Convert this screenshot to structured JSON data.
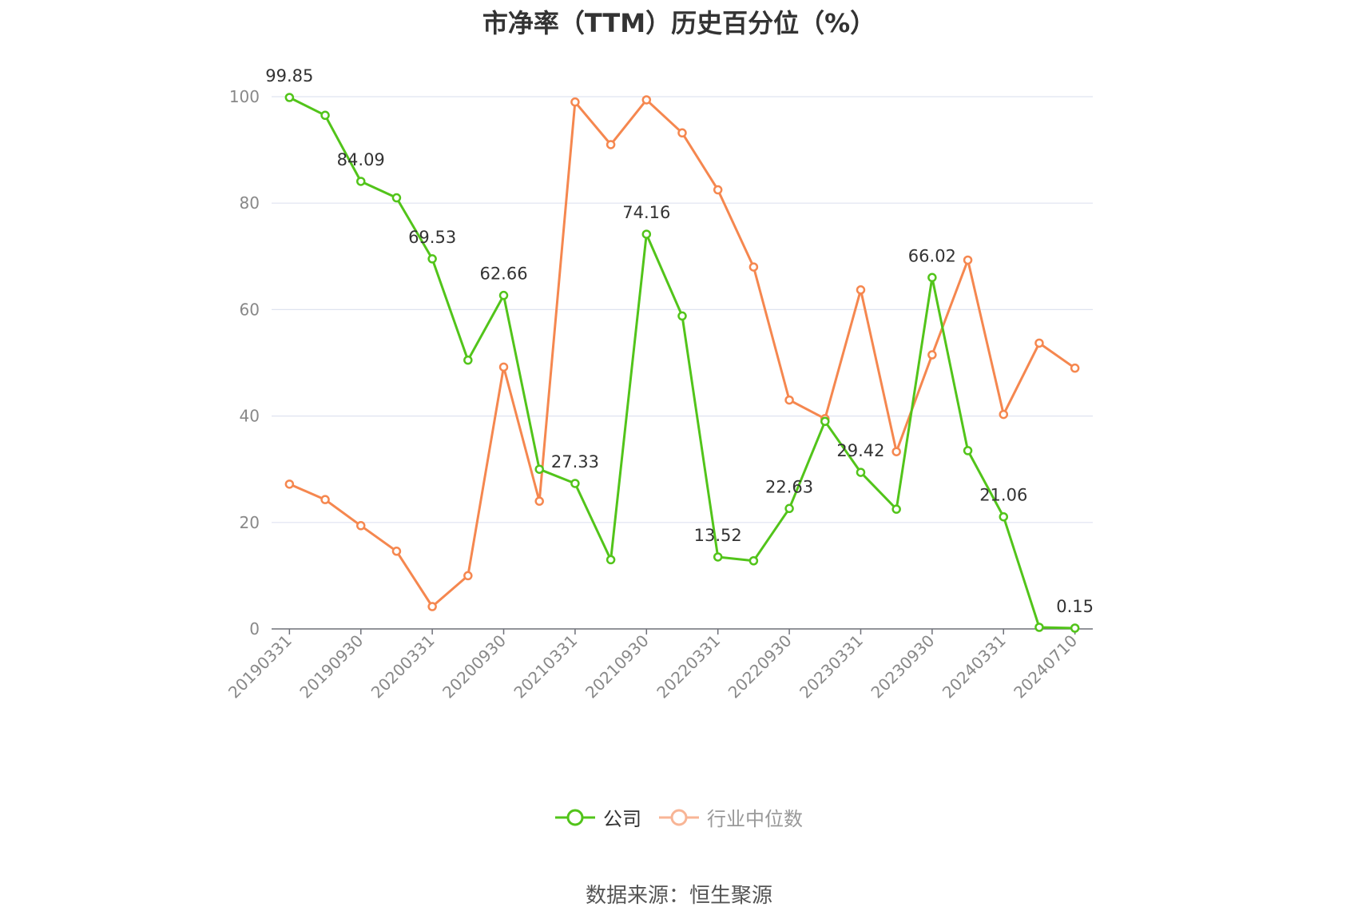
{
  "chart_data": {
    "type": "line",
    "title": "市净率（TTM）历史百分位（%）",
    "xlabel": "",
    "ylabel": "",
    "ylim": [
      0,
      100
    ],
    "yticks": [
      0,
      20,
      40,
      60,
      80,
      100
    ],
    "x": [
      "20190331",
      "20190630",
      "20190930",
      "20191231",
      "20200331",
      "20200630",
      "20200930",
      "20201231",
      "20210331",
      "20210630",
      "20210930",
      "20211231",
      "20220331",
      "20220630",
      "20220930",
      "20221231",
      "20230331",
      "20230630",
      "20230930",
      "20231231",
      "20240331",
      "20240630",
      "20240710"
    ],
    "x_tick_labels": [
      "20190331",
      "20190930",
      "20200331",
      "20200930",
      "20210331",
      "20210930",
      "20220331",
      "20220930",
      "20230331",
      "20230930",
      "20240331",
      "20240710"
    ],
    "grid": true,
    "legend_position": "bottom",
    "series": [
      {
        "name": "公司",
        "color": "#52c41a",
        "values": [
          99.85,
          96.5,
          84.09,
          81.0,
          69.53,
          50.5,
          62.66,
          30.0,
          27.33,
          13.0,
          74.16,
          58.8,
          13.52,
          12.8,
          22.63,
          39.0,
          29.42,
          22.5,
          66.02,
          33.5,
          21.06,
          0.3,
          0.15
        ],
        "labels": [
          "99.85",
          "",
          "84.09",
          "",
          "69.53",
          "",
          "62.66",
          "",
          "27.33",
          "",
          "74.16",
          "",
          "13.52",
          "",
          "22.63",
          "",
          "29.42",
          "",
          "66.02",
          "",
          "21.06",
          "",
          "0.15"
        ]
      },
      {
        "name": "行业中位数",
        "color": "#f5874f",
        "values": [
          27.2,
          24.3,
          19.4,
          14.6,
          4.2,
          10.0,
          49.2,
          24.0,
          99.0,
          91.0,
          99.4,
          93.2,
          82.5,
          68.0,
          43.0,
          39.5,
          63.7,
          33.3,
          51.5,
          69.3,
          40.3,
          53.7,
          49.0
        ]
      }
    ]
  },
  "source_text": "数据来源：恒生聚源"
}
